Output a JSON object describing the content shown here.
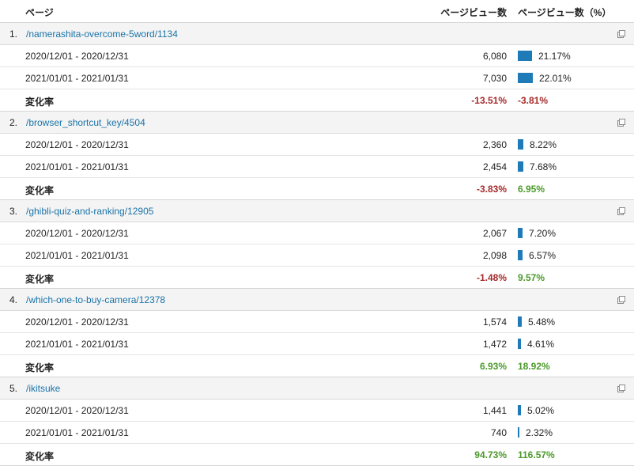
{
  "header": {
    "page_label": "ページ",
    "pv_label": "ページビュー数",
    "pct_label": "ページビュー数（%）"
  },
  "colors": {
    "bar": "#1f7ab8",
    "link": "#1a73a8",
    "negative": "#a52a2a",
    "positive": "#4b9a2a"
  },
  "icons": {
    "popout": "popout-icon"
  },
  "groups": [
    {
      "index": "1.",
      "page": "/namerashita-overcome-5word/1134",
      "rows": [
        {
          "period": "2020/12/01 - 2020/12/31",
          "pageviews": "6,080",
          "share": "21.17%",
          "share_value": 21.17
        },
        {
          "period": "2021/01/01 - 2021/01/31",
          "pageviews": "7,030",
          "share": "22.01%",
          "share_value": 22.01
        }
      ],
      "change": {
        "label": "変化率",
        "pageviews": "-13.51%",
        "pageviews_sign": "neg",
        "share": "-3.81%",
        "share_sign": "neg"
      }
    },
    {
      "index": "2.",
      "page": "/browser_shortcut_key/4504",
      "rows": [
        {
          "period": "2020/12/01 - 2020/12/31",
          "pageviews": "2,360",
          "share": "8.22%",
          "share_value": 8.22
        },
        {
          "period": "2021/01/01 - 2021/01/31",
          "pageviews": "2,454",
          "share": "7.68%",
          "share_value": 7.68
        }
      ],
      "change": {
        "label": "変化率",
        "pageviews": "-3.83%",
        "pageviews_sign": "neg",
        "share": "6.95%",
        "share_sign": "pos"
      }
    },
    {
      "index": "3.",
      "page": "/ghibli-quiz-and-ranking/12905",
      "rows": [
        {
          "period": "2020/12/01 - 2020/12/31",
          "pageviews": "2,067",
          "share": "7.20%",
          "share_value": 7.2
        },
        {
          "period": "2021/01/01 - 2021/01/31",
          "pageviews": "2,098",
          "share": "6.57%",
          "share_value": 6.57
        }
      ],
      "change": {
        "label": "変化率",
        "pageviews": "-1.48%",
        "pageviews_sign": "neg",
        "share": "9.57%",
        "share_sign": "pos"
      }
    },
    {
      "index": "4.",
      "page": "/which-one-to-buy-camera/12378",
      "rows": [
        {
          "period": "2020/12/01 - 2020/12/31",
          "pageviews": "1,574",
          "share": "5.48%",
          "share_value": 5.48
        },
        {
          "period": "2021/01/01 - 2021/01/31",
          "pageviews": "1,472",
          "share": "4.61%",
          "share_value": 4.61
        }
      ],
      "change": {
        "label": "変化率",
        "pageviews": "6.93%",
        "pageviews_sign": "pos",
        "share": "18.92%",
        "share_sign": "pos"
      }
    },
    {
      "index": "5.",
      "page": "/ikitsuke",
      "rows": [
        {
          "period": "2020/12/01 - 2020/12/31",
          "pageviews": "1,441",
          "share": "5.02%",
          "share_value": 5.02
        },
        {
          "period": "2021/01/01 - 2021/01/31",
          "pageviews": "740",
          "share": "2.32%",
          "share_value": 2.32
        }
      ],
      "change": {
        "label": "変化率",
        "pageviews": "94.73%",
        "pageviews_sign": "pos",
        "share": "116.57%",
        "share_sign": "pos"
      }
    }
  ]
}
